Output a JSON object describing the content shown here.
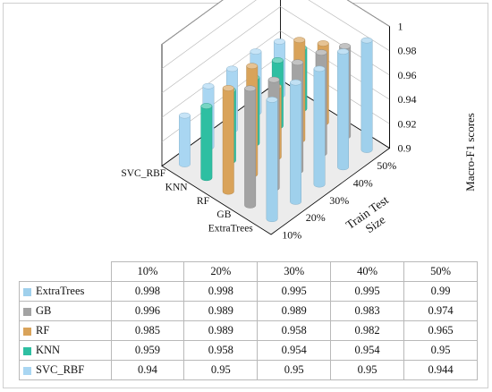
{
  "chart_data": {
    "type": "bar",
    "variant": "3d-column",
    "categories": [
      "10%",
      "20%",
      "30%",
      "40%",
      "50%"
    ],
    "series": [
      {
        "name": "ExtraTrees",
        "values": [
          0.998,
          0.998,
          0.995,
          0.995,
          0.99
        ],
        "color": "#9fd0ec"
      },
      {
        "name": "GB",
        "values": [
          0.996,
          0.989,
          0.989,
          0.983,
          0.974
        ],
        "color": "#a3a3a3"
      },
      {
        "name": "RF",
        "values": [
          0.985,
          0.989,
          0.958,
          0.982,
          0.965
        ],
        "color": "#d9a35a"
      },
      {
        "name": "KNN",
        "values": [
          0.959,
          0.958,
          0.954,
          0.954,
          0.95
        ],
        "color": "#2ebfa2"
      },
      {
        "name": "SVC_RBF",
        "values": [
          0.94,
          0.95,
          0.95,
          0.95,
          0.944
        ],
        "color": "#a9d6f2"
      }
    ],
    "zlabel": "Macro-F1 scores",
    "xlabel_line1": "Train Test",
    "xlabel_line2": "Size",
    "zlim": [
      0.9,
      1.0
    ],
    "zticks": [
      "1",
      "0.98",
      "0.96",
      "0.94",
      "0.92",
      "0.9"
    ],
    "grid": true,
    "legend": "data-table-below"
  }
}
